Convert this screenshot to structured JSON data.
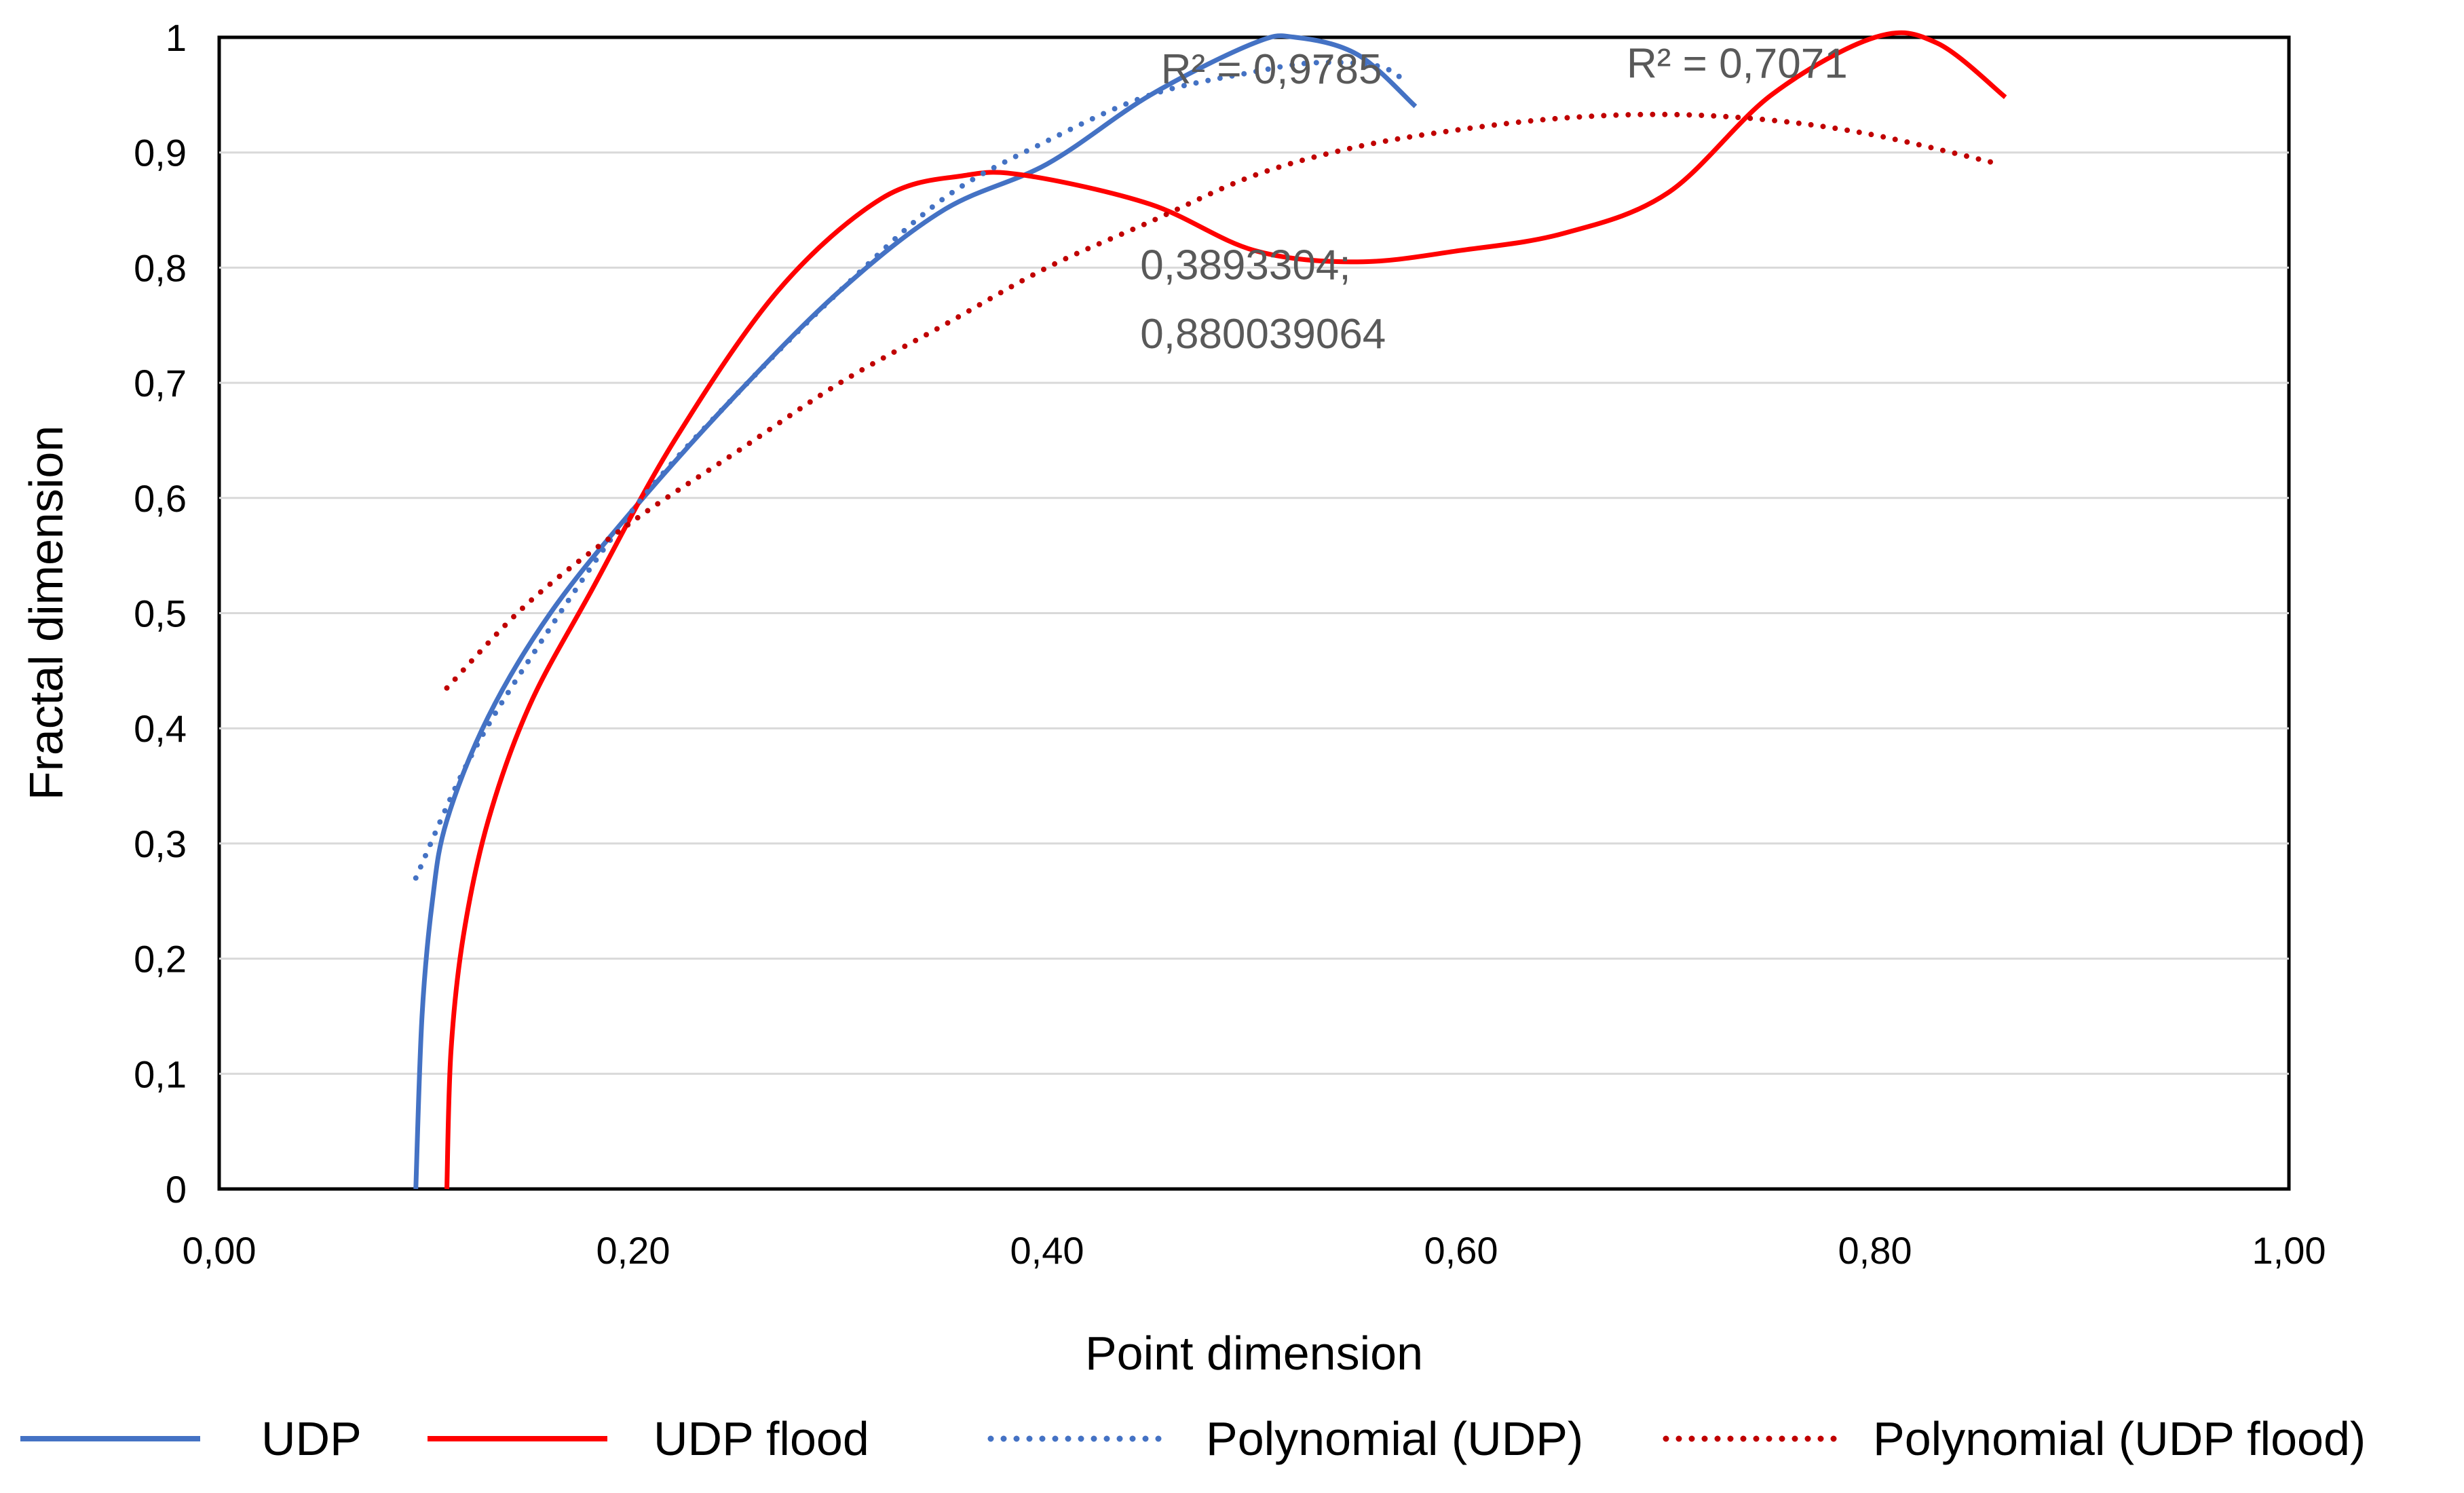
{
  "chart_data": {
    "type": "line",
    "title": "",
    "xlabel": "Point dimension",
    "ylabel": "Fractal dimension",
    "xlim": [
      0,
      1
    ],
    "ylim": [
      0,
      1
    ],
    "grid": true,
    "legend_position": "bottom",
    "x_ticks": [
      "0,00",
      "0,20",
      "0,40",
      "0,60",
      "0,80",
      "1,00"
    ],
    "y_ticks": [
      "0",
      "0,1",
      "0,2",
      "0,3",
      "0,4",
      "0,5",
      "0,6",
      "0,7",
      "0,8",
      "0,9",
      "1"
    ],
    "series": [
      {
        "name": "UDP",
        "style": "solid",
        "color": "#4472C4",
        "points": [
          [
            0.095,
            0.0
          ],
          [
            0.098,
            0.15
          ],
          [
            0.103,
            0.25
          ],
          [
            0.11,
            0.32
          ],
          [
            0.13,
            0.41
          ],
          [
            0.16,
            0.5
          ],
          [
            0.2,
            0.59
          ],
          [
            0.25,
            0.69
          ],
          [
            0.3,
            0.78
          ],
          [
            0.35,
            0.85
          ],
          [
            0.4,
            0.89
          ],
          [
            0.45,
            0.95
          ],
          [
            0.5,
            0.995
          ],
          [
            0.52,
            1.0
          ],
          [
            0.55,
            0.985
          ],
          [
            0.578,
            0.94
          ]
        ]
      },
      {
        "name": "UDP flood",
        "style": "solid",
        "color": "#FF0000",
        "points": [
          [
            0.11,
            0.0
          ],
          [
            0.112,
            0.12
          ],
          [
            0.118,
            0.22
          ],
          [
            0.13,
            0.32
          ],
          [
            0.15,
            0.42
          ],
          [
            0.18,
            0.52
          ],
          [
            0.22,
            0.65
          ],
          [
            0.27,
            0.78
          ],
          [
            0.32,
            0.86
          ],
          [
            0.36,
            0.88
          ],
          [
            0.39,
            0.88
          ],
          [
            0.45,
            0.855
          ],
          [
            0.5,
            0.815
          ],
          [
            0.55,
            0.805
          ],
          [
            0.6,
            0.815
          ],
          [
            0.65,
            0.83
          ],
          [
            0.7,
            0.865
          ],
          [
            0.75,
            0.95
          ],
          [
            0.8,
            1.0
          ],
          [
            0.83,
            0.995
          ],
          [
            0.863,
            0.948
          ]
        ]
      },
      {
        "name": "Polynomial (UDP)",
        "style": "dotted",
        "color": "#4472C4",
        "points": [
          [
            0.095,
            0.27
          ],
          [
            0.12,
            0.37
          ],
          [
            0.15,
            0.46
          ],
          [
            0.2,
            0.59
          ],
          [
            0.25,
            0.69
          ],
          [
            0.3,
            0.78
          ],
          [
            0.35,
            0.86
          ],
          [
            0.4,
            0.91
          ],
          [
            0.45,
            0.95
          ],
          [
            0.5,
            0.97
          ],
          [
            0.53,
            0.978
          ],
          [
            0.56,
            0.975
          ],
          [
            0.573,
            0.962
          ]
        ]
      },
      {
        "name": "Polynomial (UDP flood)",
        "style": "dotted",
        "color": "#C00000",
        "points": [
          [
            0.11,
            0.435
          ],
          [
            0.15,
            0.51
          ],
          [
            0.2,
            0.58
          ],
          [
            0.25,
            0.64
          ],
          [
            0.3,
            0.7
          ],
          [
            0.35,
            0.75
          ],
          [
            0.4,
            0.8
          ],
          [
            0.45,
            0.84
          ],
          [
            0.5,
            0.88
          ],
          [
            0.55,
            0.905
          ],
          [
            0.6,
            0.92
          ],
          [
            0.65,
            0.93
          ],
          [
            0.7,
            0.933
          ],
          [
            0.75,
            0.928
          ],
          [
            0.8,
            0.915
          ],
          [
            0.86,
            0.89
          ]
        ]
      }
    ],
    "annotations": [
      {
        "text": "R² = 0,9785",
        "x": 0.455,
        "y": 0.96
      },
      {
        "text": "R² = 0,7071",
        "x": 0.68,
        "y": 0.965
      },
      {
        "text": "0,3893304;",
        "x": 0.445,
        "y": 0.79
      },
      {
        "text": "0,880039064",
        "x": 0.445,
        "y": 0.73
      }
    ]
  }
}
